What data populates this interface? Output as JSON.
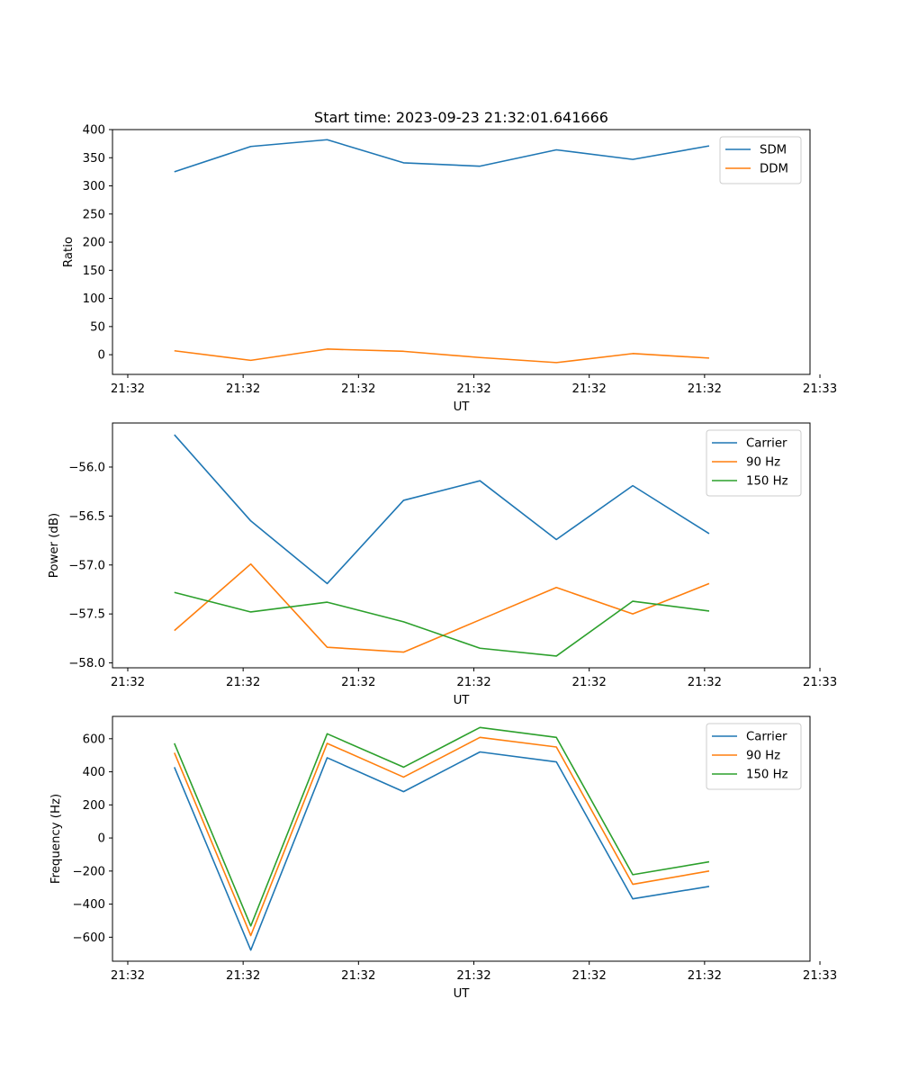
{
  "chart_data": [
    {
      "type": "line",
      "title": "Start time: 2023-09-23 21:32:01.641666",
      "xlabel": "UT",
      "ylabel": "Ratio",
      "x_tick_labels": [
        "21:32",
        "21:32",
        "21:32",
        "21:32",
        "21:32",
        "21:32",
        "21:33"
      ],
      "x": [
        1,
        2,
        3,
        4,
        5,
        6,
        7,
        8
      ],
      "xlim": [
        0.19,
        9.32
      ],
      "xticks": [
        0.39,
        1.9,
        3.41,
        4.92,
        6.43,
        7.94,
        9.45
      ],
      "ylim": [
        -35,
        400
      ],
      "yticks": [
        0,
        50,
        100,
        150,
        200,
        250,
        300,
        350,
        400
      ],
      "y_tick_labels": [
        "0",
        "50",
        "100",
        "150",
        "200",
        "250",
        "300",
        "350",
        "400"
      ],
      "legend_position": "top-right",
      "series": [
        {
          "name": "SDM",
          "color": "#1f77b4",
          "values": [
            325,
            370,
            382,
            341,
            335,
            364,
            347,
            371
          ]
        },
        {
          "name": "DDM",
          "color": "#ff7f0e",
          "values": [
            7,
            -10,
            10,
            6,
            -5,
            -14,
            2,
            -6
          ]
        }
      ]
    },
    {
      "type": "line",
      "title": "",
      "xlabel": "UT",
      "ylabel": "Power (dB)",
      "x_tick_labels": [
        "21:32",
        "21:32",
        "21:32",
        "21:32",
        "21:32",
        "21:32",
        "21:33"
      ],
      "x": [
        1,
        2,
        3,
        4,
        5,
        6,
        7,
        8
      ],
      "xlim": [
        0.19,
        9.32
      ],
      "xticks": [
        0.39,
        1.9,
        3.41,
        4.92,
        6.43,
        7.94,
        9.45
      ],
      "ylim": [
        -58.05,
        -55.55
      ],
      "yticks": [
        -58.0,
        -57.5,
        -57.0,
        -56.5,
        -56.0
      ],
      "y_tick_labels": [
        "−58.0",
        "−57.5",
        "−57.0",
        "−56.5",
        "−56.0"
      ],
      "legend_position": "top-right",
      "series": [
        {
          "name": "Carrier",
          "color": "#1f77b4",
          "values": [
            -55.67,
            -56.55,
            -57.19,
            -56.34,
            -56.14,
            -56.74,
            -56.19,
            -56.68
          ]
        },
        {
          "name": "90 Hz",
          "color": "#ff7f0e",
          "values": [
            -57.67,
            -56.99,
            -57.84,
            -57.89,
            -57.56,
            -57.23,
            -57.5,
            -57.19
          ]
        },
        {
          "name": "150 Hz",
          "color": "#2ca02c",
          "values": [
            -57.28,
            -57.48,
            -57.38,
            -57.58,
            -57.85,
            -57.93,
            -57.37,
            -57.47
          ]
        }
      ]
    },
    {
      "type": "line",
      "title": "",
      "xlabel": "UT",
      "ylabel": "Frequency (Hz)",
      "x_tick_labels": [
        "21:32",
        "21:32",
        "21:32",
        "21:32",
        "21:32",
        "21:32",
        "21:33"
      ],
      "x": [
        1,
        2,
        3,
        4,
        5,
        6,
        7,
        8
      ],
      "xlim": [
        0.19,
        9.32
      ],
      "xticks": [
        0.39,
        1.9,
        3.41,
        4.92,
        6.43,
        7.94,
        9.45
      ],
      "ylim": [
        -745,
        735
      ],
      "yticks": [
        -600,
        -400,
        -200,
        0,
        200,
        400,
        600
      ],
      "y_tick_labels": [
        "−600",
        "−400",
        "−200",
        "0",
        "200",
        "400",
        "600"
      ],
      "legend_position": "top-right",
      "series": [
        {
          "name": "Carrier",
          "color": "#1f77b4",
          "values": [
            428,
            -678,
            485,
            280,
            520,
            460,
            -368,
            -293
          ]
        },
        {
          "name": "90 Hz",
          "color": "#ff7f0e",
          "values": [
            515,
            -590,
            572,
            368,
            608,
            550,
            -280,
            -200
          ]
        },
        {
          "name": "150 Hz",
          "color": "#2ca02c",
          "values": [
            572,
            -532,
            630,
            428,
            668,
            608,
            -222,
            -144
          ]
        }
      ]
    }
  ]
}
